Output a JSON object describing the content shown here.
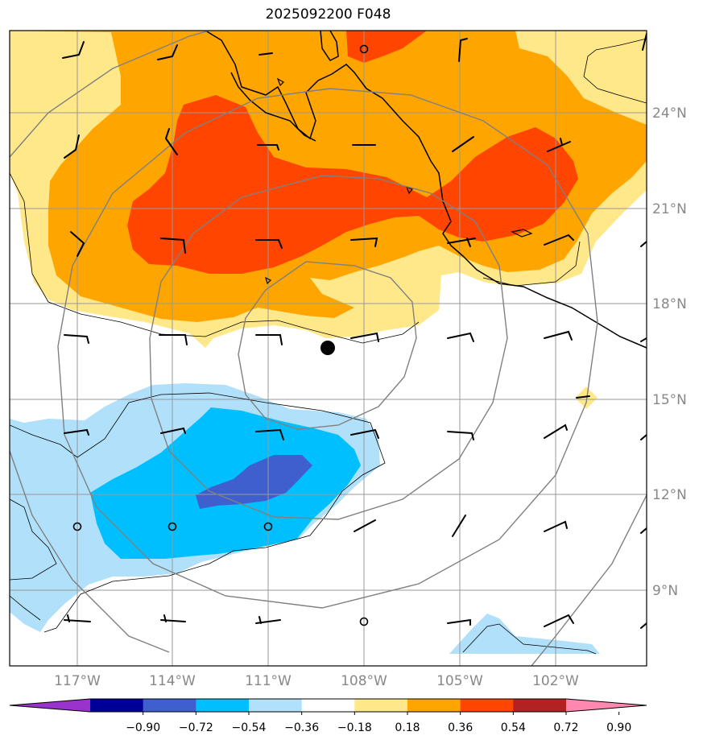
{
  "title": "2025092200 F048",
  "lon_labels": [
    "117°W",
    "114°W",
    "111°W",
    "108°W",
    "105°W",
    "102°W"
  ],
  "lat_labels": [
    "24°N",
    "21°N",
    "18°N",
    "15°N",
    "12°N",
    "9°N"
  ],
  "colorbar": {
    "ticks": [
      "−0.90",
      "−0.72",
      "−0.54",
      "−0.36",
      "−0.18",
      "0.18",
      "0.36",
      "0.54",
      "0.72",
      "0.90"
    ],
    "colors": [
      "#9933cc",
      "#000099",
      "#3f5fcf",
      "#00bfff",
      "#b0e0fa",
      "#ffffff",
      "#ffe88a",
      "#ffa500",
      "#ff4500",
      "#b22222",
      "#ff88b0"
    ]
  },
  "colors": {
    "light_orange": "#ffe88a",
    "orange": "#ffa500",
    "red_orange": "#ff4500",
    "light_blue": "#b0e0fa",
    "blue": "#00bfff",
    "dark_blue": "#3f5fcf",
    "grid": "#999999",
    "range_rings": "#808080"
  },
  "symbols": [
    "storm-center-marker",
    "wind-barbs",
    "calm-circles",
    "coastlines",
    "range-rings"
  ]
}
